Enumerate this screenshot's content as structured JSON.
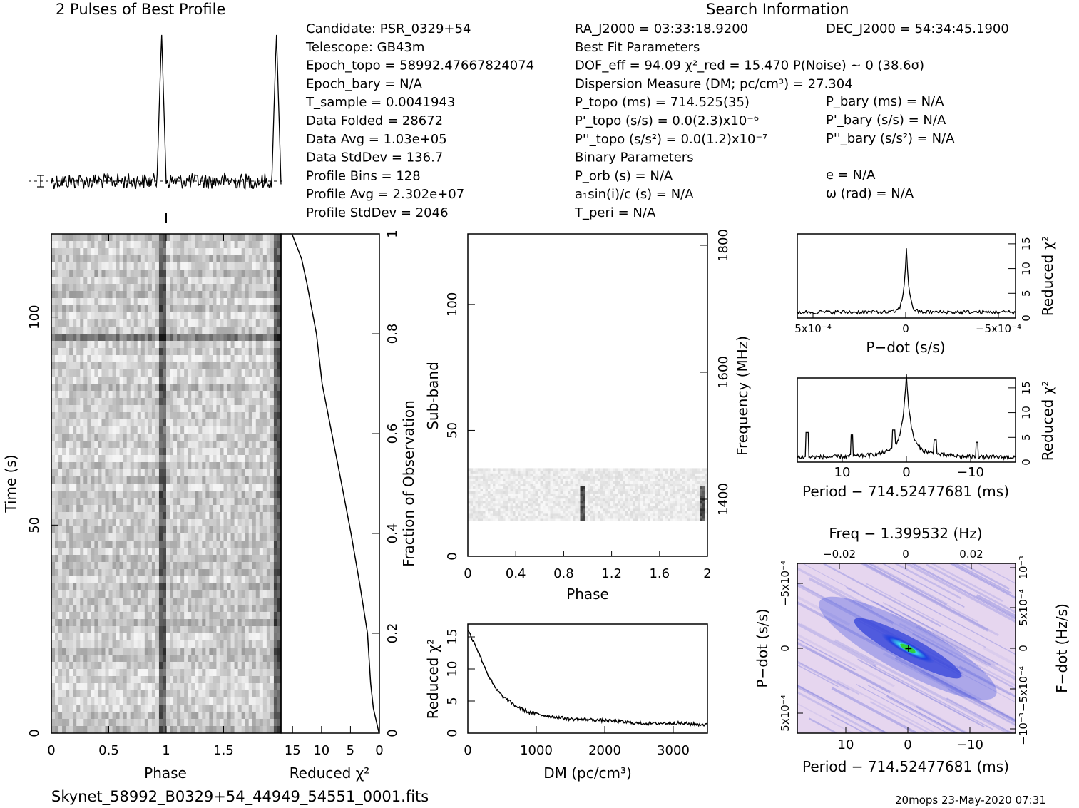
{
  "header": {
    "profile_title": "2 Pulses of Best Profile",
    "search_title": "Search Information",
    "filename": "Skynet_58992_B0329+54_44949_54551_0001.fits",
    "footer": "20mops 23-May-2020 07:31"
  },
  "info": {
    "col1": [
      "Candidate:  PSR_0329+54",
      "Telescope:  GB43m",
      "Epoch_topo = 58992.47667824074",
      "Epoch_bary = N/A",
      "T_sample        =  0.0041943",
      "Data Folded     =  28672",
      "Data Avg        =  1.03e+05",
      "Data StdDev     =  136.7",
      "Profile Bins    =  128",
      "Profile Avg     =  2.302e+07",
      "Profile StdDev  =  2046"
    ],
    "col2": [
      "RA_J2000 = 03:33:18.9200",
      "Best Fit Parameters",
      "DOF_eff = 94.09  χ²_red = 15.470  P(Noise) ~ 0   (38.6σ)",
      "Dispersion Measure (DM; pc/cm³) = 27.304",
      "P_topo (ms) =  714.525(35)",
      "P'_topo (s/s) = 0.0(2.3)x10⁻⁶",
      "P''_topo (s/s²) = 0.0(1.2)x10⁻⁷",
      "Binary Parameters",
      "P_orb (s) = N/A",
      "a₁sin(i)/c (s) = N/A",
      "T_peri = N/A"
    ],
    "col3": [
      "DEC_J2000 = 54:34:45.1900",
      "P_bary (ms) = N/A",
      "P'_bary (s/s) = N/A",
      "P''_bary (s/s²) = N/A",
      "e = N/A",
      "ω (rad) = N/A"
    ]
  },
  "chart_data": [
    {
      "type": "line",
      "id": "pulse-profile",
      "title": "2 Pulses of Best Profile",
      "x": "phase 0-2 (2 pulses)",
      "peak_phases": [
        0.96,
        1.96
      ],
      "noise_level": 0.0
    },
    {
      "type": "heatmap",
      "id": "time-phase",
      "xlabel": "Phase",
      "ylabel": "Time (s)",
      "xlim": [
        0,
        2
      ],
      "ylim": [
        0,
        120
      ],
      "x_ticks": [
        "0",
        "0.5",
        "1",
        "1.5"
      ],
      "y_ticks": [
        "0",
        "50",
        "100"
      ],
      "pulse_phase": 0.96
    },
    {
      "type": "line",
      "id": "chi2-vs-time",
      "xlabel": "Reduced χ²",
      "ylabel": "Fraction of Observation",
      "x_ticks": [
        "15",
        "10",
        "5",
        "0"
      ],
      "y_ticks": [
        "0",
        "0.2",
        "0.4",
        "0.6",
        "0.8",
        "1"
      ],
      "xlim": [
        17,
        0
      ],
      "ylim": [
        0,
        1
      ],
      "points": [
        [
          0.0,
          0
        ],
        [
          1.0,
          0.05
        ],
        [
          1.4,
          0.1
        ],
        [
          2.0,
          0.2
        ],
        [
          3.4,
          0.3
        ],
        [
          5.0,
          0.4
        ],
        [
          6.5,
          0.5
        ],
        [
          8.2,
          0.6
        ],
        [
          9.8,
          0.7
        ],
        [
          11.0,
          0.8
        ],
        [
          12.5,
          0.9
        ],
        [
          13.5,
          0.95
        ],
        [
          15.0,
          1.0
        ]
      ]
    },
    {
      "type": "heatmap",
      "id": "subband-phase",
      "xlabel": "Phase",
      "ylabel": "Sub-band",
      "y2label": "Frequency (MHz)",
      "xlim": [
        0,
        2
      ],
      "ylim": [
        0,
        128
      ],
      "x_ticks": [
        "0",
        "0.4",
        "0.8",
        "1.2",
        "1.6",
        "2"
      ],
      "y_ticks": [
        "0",
        "50",
        "100"
      ],
      "y2_ticks": [
        "1400",
        "1600",
        "1800"
      ],
      "band_range": [
        14,
        35
      ],
      "pulse_phase": 0.96
    },
    {
      "type": "line",
      "id": "chi2-vs-dm",
      "xlabel": "DM (pc/cm³)",
      "ylabel": "Reduced χ²",
      "xlim": [
        0,
        3500
      ],
      "ylim": [
        0,
        17
      ],
      "x_ticks": [
        "0",
        "1000",
        "2000",
        "3000"
      ],
      "y_ticks": [
        "0",
        "5",
        "10",
        "15"
      ],
      "points": [
        [
          0,
          16
        ],
        [
          100,
          14
        ],
        [
          200,
          11.5
        ],
        [
          300,
          9
        ],
        [
          400,
          7
        ],
        [
          500,
          5.8
        ],
        [
          700,
          4.2
        ],
        [
          900,
          3.2
        ],
        [
          1200,
          2.6
        ],
        [
          1500,
          2.2
        ],
        [
          1800,
          2.1
        ],
        [
          2100,
          1.9
        ],
        [
          2400,
          1.6
        ],
        [
          2700,
          1.5
        ],
        [
          3000,
          1.6
        ],
        [
          3300,
          1.4
        ],
        [
          3500,
          1.3
        ]
      ]
    },
    {
      "type": "line",
      "id": "chi2-vs-pdot",
      "xlabel": "P−dot (s/s)",
      "ylabel": "Reduced χ²",
      "x_ticks": [
        "5x10⁻⁴",
        "0",
        "−5x10⁻⁴"
      ],
      "y_ticks": [
        "0",
        "5",
        "10",
        "15"
      ],
      "ylim": [
        0,
        17
      ],
      "peak": 15.5,
      "baseline": 1.2
    },
    {
      "type": "line",
      "id": "chi2-vs-period",
      "xlabel": "Period − 714.52477681 (ms)",
      "ylabel": "Reduced χ²",
      "x_ticks": [
        "10",
        "0",
        "−10"
      ],
      "y_ticks": [
        "0",
        "5",
        "10",
        "15"
      ],
      "xlim": [
        17,
        -17
      ],
      "ylim": [
        0,
        17
      ],
      "peak": 15.5,
      "side_spikes": [
        [
          15.5,
          6
        ],
        [
          8.5,
          5.5
        ],
        [
          2,
          6.5
        ],
        [
          -4.5,
          4.5
        ],
        [
          -11,
          4
        ]
      ]
    },
    {
      "type": "heatmap",
      "id": "period-pdot",
      "title": "Freq − 1.399532 (Hz)",
      "xlabel": "Period − 714.52477681 (ms)",
      "ylabel": "P−dot (s/s)",
      "y2label": "F−dot (Hz/s)",
      "x_ticks": [
        "10",
        "0",
        "−10"
      ],
      "x2_ticks": [
        "−0.02",
        "0",
        "0.02"
      ],
      "y_ticks": [
        "−5x10⁻⁴",
        "0",
        "5x10⁻⁴"
      ],
      "y2_ticks": [
        "10⁻³",
        "5x10⁻⁴",
        "0",
        "−5x10⁻⁴",
        "−10⁻³"
      ],
      "colors": [
        "#e8d8f0",
        "#a098e8",
        "#3040d8",
        "#40e8f0",
        "#30d040"
      ]
    }
  ]
}
